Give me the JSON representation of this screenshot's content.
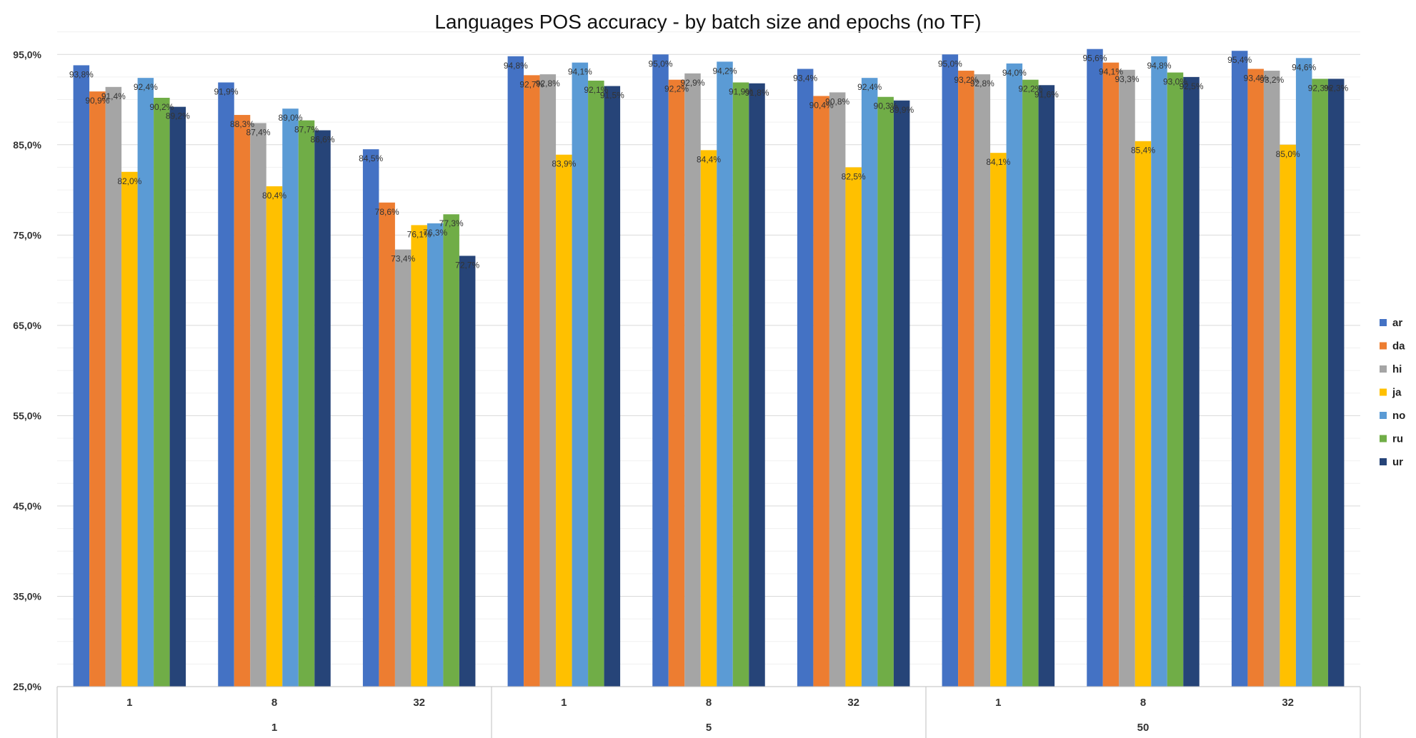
{
  "chart_data": {
    "type": "bar",
    "title": "Languages POS accuracy - by batch size and epochs (no TF)",
    "xlabel": "",
    "ylabel": "",
    "ylim": [
      25,
      100
    ],
    "yticks": [
      "25,0%",
      "35,0%",
      "45,0%",
      "55,0%",
      "65,0%",
      "75,0%",
      "85,0%",
      "95,0%"
    ],
    "grid": true,
    "legend_position": "right",
    "epoch_groups": [
      {
        "label": "1",
        "batch_sizes": [
          "1",
          "8",
          "32"
        ]
      },
      {
        "label": "5",
        "batch_sizes": [
          "1",
          "8",
          "32"
        ]
      },
      {
        "label": "50",
        "batch_sizes": [
          "1",
          "8",
          "32"
        ]
      }
    ],
    "categories": [
      "1",
      "8",
      "32",
      "1",
      "8",
      "32",
      "1",
      "8",
      "32"
    ],
    "series": [
      {
        "name": "ar",
        "color": "#4472C4",
        "values": [
          93.8,
          91.9,
          84.5,
          94.8,
          95.0,
          93.4,
          95.0,
          95.6,
          95.4
        ],
        "labels": [
          "93,8%",
          "91,9%",
          "84,5%",
          "94,8%",
          "95,0%",
          "93,4%",
          "95,0%",
          "95,6%",
          "95,4%"
        ]
      },
      {
        "name": "da",
        "color": "#ED7D31",
        "values": [
          90.9,
          88.3,
          78.6,
          92.7,
          92.2,
          90.4,
          93.2,
          94.1,
          93.4
        ],
        "labels": [
          "90,9%",
          "88,3%",
          "78,6%",
          "92,7%",
          "92,2%",
          "90,4%",
          "93,2%",
          "94,1%",
          "93,4%"
        ]
      },
      {
        "name": "hi",
        "color": "#A5A5A5",
        "values": [
          91.4,
          87.4,
          73.4,
          92.8,
          92.9,
          90.8,
          92.8,
          93.3,
          93.2
        ],
        "labels": [
          "91,4%",
          "87,4%",
          "73,4%",
          "92,8%",
          "92,9%",
          "90,8%",
          "92,8%",
          "93,3%",
          "93,2%"
        ]
      },
      {
        "name": "ja",
        "color": "#FFC000",
        "values": [
          82.0,
          80.4,
          76.1,
          83.9,
          84.4,
          82.5,
          84.1,
          85.4,
          85.0
        ],
        "labels": [
          "82,0%",
          "80,4%",
          "76,1%",
          "83,9%",
          "84,4%",
          "82,5%",
          "84,1%",
          "85,4%",
          "85,0%"
        ]
      },
      {
        "name": "no",
        "color": "#5B9BD5",
        "values": [
          92.4,
          89.0,
          76.3,
          94.1,
          94.2,
          92.4,
          94.0,
          94.8,
          94.6
        ],
        "labels": [
          "92,4%",
          "89,0%",
          "76,3%",
          "94,1%",
          "94,2%",
          "92,4%",
          "94,0%",
          "94,8%",
          "94,6%"
        ]
      },
      {
        "name": "ru",
        "color": "#70AD47",
        "values": [
          90.2,
          87.7,
          77.3,
          92.1,
          91.9,
          90.3,
          92.2,
          93.0,
          92.3
        ],
        "labels": [
          "90,2%",
          "87,7%",
          "77,3%",
          "92,1%",
          "91,9%",
          "90,3%",
          "92,2%",
          "93,0%",
          "92,3%"
        ]
      },
      {
        "name": "ur",
        "color": "#264478",
        "values": [
          89.2,
          86.6,
          72.7,
          91.5,
          91.8,
          89.9,
          91.6,
          92.5,
          92.3
        ],
        "labels": [
          "89,2%",
          "86,6%",
          "72,7%",
          "91,5%",
          "91,8%",
          "89,9%",
          "91,6%",
          "92,5%",
          "92,3%"
        ]
      }
    ]
  }
}
